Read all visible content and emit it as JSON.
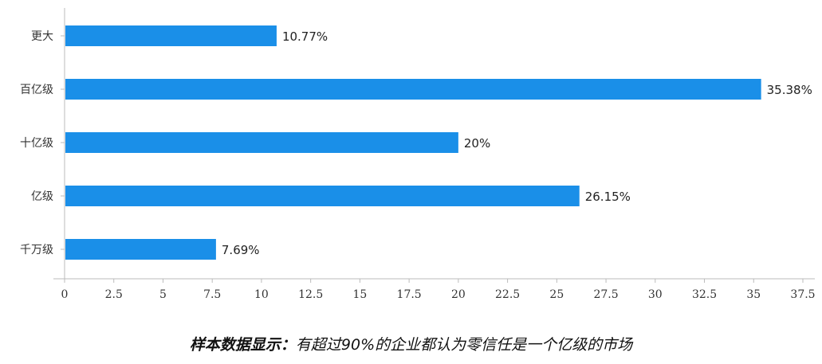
{
  "chart_data": {
    "type": "bar",
    "orientation": "horizontal",
    "categories": [
      "更大",
      "百亿级",
      "十亿级",
      "亿级",
      "千万级"
    ],
    "values": [
      10.77,
      35.38,
      20,
      26.15,
      7.69
    ],
    "data_labels": [
      "10.77%",
      "35.38%",
      "20%",
      "26.15%",
      "7.69%"
    ],
    "xticks": [
      "0",
      "2.5",
      "5",
      "7.5",
      "10",
      "12.5",
      "15",
      "17.5",
      "20",
      "22.5",
      "25",
      "27.5",
      "30",
      "32.5",
      "35",
      "37.5"
    ],
    "xlim": [
      0,
      37.5
    ],
    "grid": false,
    "bar_color": "#1a8fe8",
    "title": "",
    "xlabel": "",
    "ylabel": ""
  },
  "caption": {
    "lead": "样本数据显示：",
    "text": "有超过90%的企业都认为零信任是一个亿级的市场"
  }
}
